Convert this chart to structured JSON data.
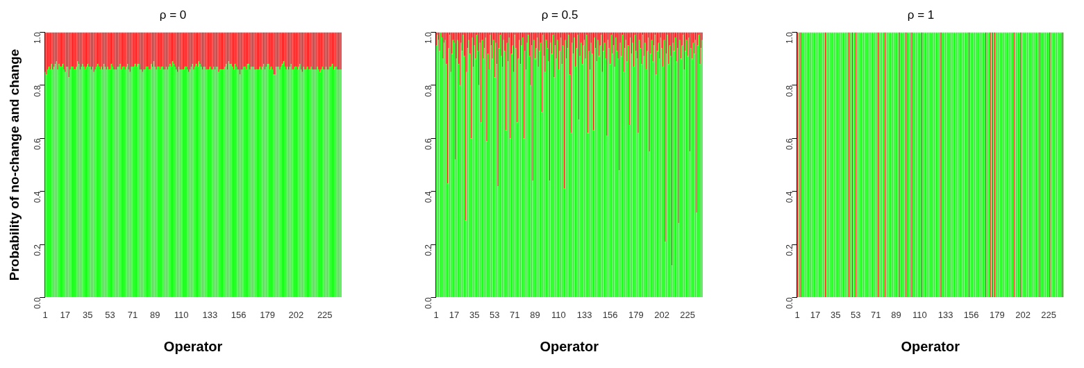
{
  "chart_data": [
    {
      "type": "bar",
      "title": "ρ = 0",
      "xlabel": "Operator",
      "ylabel": "Probability of no-change and change",
      "stacked": true,
      "categories": [
        "1",
        null,
        null,
        null,
        null,
        null,
        null,
        null,
        null,
        null,
        null,
        null,
        null,
        null,
        null,
        null,
        "17",
        null,
        null,
        null,
        null,
        null,
        null,
        null,
        null,
        null,
        null,
        null,
        null,
        null,
        null,
        null,
        null,
        null,
        "35",
        null,
        null,
        null,
        null,
        null,
        null,
        null,
        null,
        null,
        null,
        null,
        null,
        null,
        null,
        null,
        null,
        null,
        "53",
        null,
        null,
        null,
        null,
        null,
        null,
        null,
        null,
        null,
        null,
        null,
        null,
        null,
        null,
        null,
        null,
        null,
        "71",
        null,
        null,
        null,
        null,
        null,
        null,
        null,
        null,
        null,
        null,
        null,
        null,
        null,
        null,
        null,
        null,
        null,
        "89",
        null,
        null,
        null,
        null,
        null,
        null,
        null,
        null,
        null,
        null,
        null,
        null,
        null,
        null,
        null,
        null,
        null,
        null,
        null,
        null,
        "110",
        null,
        null,
        null,
        null,
        null,
        null,
        null,
        null,
        null,
        null,
        null,
        null,
        null,
        null,
        null,
        null,
        null,
        null,
        null,
        null,
        null,
        null,
        "133",
        null,
        null,
        null,
        null,
        null,
        null,
        null,
        null,
        null,
        null,
        null,
        null,
        null,
        null,
        null,
        null,
        null,
        null,
        null,
        null,
        null,
        null,
        "156",
        null,
        null,
        null,
        null,
        null,
        null,
        null,
        null,
        null,
        null,
        null,
        null,
        null,
        null,
        null,
        null,
        null,
        null,
        null,
        null,
        null,
        null,
        "179",
        null,
        null,
        null,
        null,
        null,
        null,
        null,
        null,
        null,
        null,
        null,
        null,
        null,
        null,
        null,
        null,
        null,
        null,
        null,
        null,
        null,
        null,
        "202",
        null,
        null,
        null,
        null,
        null,
        null,
        null,
        null,
        null,
        null,
        null,
        null,
        null,
        null,
        null,
        null,
        null,
        null,
        null,
        null,
        null,
        null,
        "225",
        null,
        null,
        null,
        null,
        null,
        null,
        null,
        null,
        null,
        null,
        null,
        null,
        null
      ],
      "ylim": [
        0,
        1
      ],
      "yticks": [
        {
          "value": 0,
          "label": "0.0"
        },
        {
          "value": 0.2,
          "label": "0.2"
        },
        {
          "value": 0.4,
          "label": "0.4"
        },
        {
          "value": 0.6,
          "label": "0.6"
        },
        {
          "value": 0.8,
          "label": "0.8"
        },
        {
          "value": 1,
          "label": "1.0"
        }
      ],
      "series": [
        {
          "color": "#00ff00",
          "values": [
            0.85,
            0.84,
            0.86,
            0.87,
            0.86,
            0.88,
            0.86,
            0.87,
            0.88,
            0.89,
            0.86,
            0.88,
            0.87,
            0.87,
            0.88,
            0.86,
            0.85,
            0.87,
            0.87,
            0.83,
            0.86,
            0.87,
            0.87,
            0.86,
            0.86,
            0.87,
            0.89,
            0.88,
            0.86,
            0.87,
            0.88,
            0.87,
            0.86,
            0.87,
            0.88,
            0.87,
            0.87,
            0.86,
            0.87,
            0.85,
            0.86,
            0.87,
            0.88,
            0.87,
            0.86,
            0.87,
            0.86,
            0.88,
            0.87,
            0.86,
            0.87,
            0.86,
            0.86,
            0.88,
            0.87,
            0.86,
            0.86,
            0.86,
            0.87,
            0.87,
            0.88,
            0.86,
            0.87,
            0.87,
            0.86,
            0.87,
            0.88,
            0.86,
            0.85,
            0.87,
            0.87,
            0.87,
            0.88,
            0.87,
            0.88,
            0.88,
            0.86,
            0.86,
            0.85,
            0.86,
            0.86,
            0.87,
            0.87,
            0.86,
            0.86,
            0.88,
            0.87,
            0.89,
            0.87,
            0.86,
            0.87,
            0.87,
            0.86,
            0.87,
            0.87,
            0.86,
            0.86,
            0.87,
            0.86,
            0.87,
            0.88,
            0.87,
            0.89,
            0.88,
            0.87,
            0.86,
            0.85,
            0.87,
            0.86,
            0.86,
            0.86,
            0.86,
            0.87,
            0.87,
            0.86,
            0.85,
            0.86,
            0.87,
            0.88,
            0.86,
            0.87,
            0.88,
            0.87,
            0.89,
            0.88,
            0.87,
            0.86,
            0.87,
            0.87,
            0.86,
            0.86,
            0.86,
            0.87,
            0.86,
            0.86,
            0.87,
            0.86,
            0.87,
            0.87,
            0.85,
            0.86,
            0.86,
            0.86,
            0.86,
            0.87,
            0.88,
            0.86,
            0.89,
            0.88,
            0.88,
            0.87,
            0.86,
            0.88,
            0.87,
            0.86,
            0.86,
            0.84,
            0.86,
            0.86,
            0.87,
            0.87,
            0.86,
            0.88,
            0.88,
            0.86,
            0.87,
            0.87,
            0.87,
            0.86,
            0.86,
            0.86,
            0.86,
            0.87,
            0.86,
            0.87,
            0.88,
            0.86,
            0.87,
            0.88,
            0.88,
            0.86,
            0.87,
            0.86,
            0.84,
            0.84,
            0.87,
            0.87,
            0.87,
            0.86,
            0.87,
            0.88,
            0.89,
            0.87,
            0.86,
            0.87,
            0.86,
            0.87,
            0.88,
            0.86,
            0.86,
            0.87,
            0.87,
            0.86,
            0.87,
            0.88,
            0.86,
            0.85,
            0.87,
            0.86,
            0.86,
            0.87,
            0.86,
            0.86,
            0.87,
            0.86,
            0.86,
            0.86,
            0.86,
            0.87,
            0.86,
            0.85,
            0.86,
            0.87,
            0.86,
            0.86,
            0.87,
            0.86,
            0.86,
            0.87,
            0.87,
            0.88,
            0.86,
            0.87,
            0.87,
            0.86,
            0.86,
            0.86,
            0.86
          ]
        },
        {
          "color": "#ff0000",
          "values": [
            0.15,
            0.16,
            0.14,
            0.13,
            0.14,
            0.12,
            0.14,
            0.13,
            0.12,
            0.11,
            0.14,
            0.12,
            0.13,
            0.13,
            0.12,
            0.14,
            0.15,
            0.13,
            0.13,
            0.17,
            0.14,
            0.13,
            0.13,
            0.14,
            0.14,
            0.13,
            0.11,
            0.12,
            0.14,
            0.13,
            0.12,
            0.13,
            0.14,
            0.13,
            0.12,
            0.13,
            0.13,
            0.14,
            0.13,
            0.15,
            0.14,
            0.13,
            0.12,
            0.13,
            0.14,
            0.13,
            0.14,
            0.12,
            0.13,
            0.14,
            0.13,
            0.14,
            0.14,
            0.12,
            0.13,
            0.14,
            0.14,
            0.14,
            0.13,
            0.13,
            0.12,
            0.14,
            0.13,
            0.13,
            0.14,
            0.13,
            0.12,
            0.14,
            0.15,
            0.13,
            0.13,
            0.13,
            0.12,
            0.13,
            0.12,
            0.12,
            0.14,
            0.14,
            0.15,
            0.14,
            0.14,
            0.13,
            0.13,
            0.14,
            0.14,
            0.12,
            0.13,
            0.11,
            0.13,
            0.14,
            0.13,
            0.13,
            0.14,
            0.13,
            0.13,
            0.14,
            0.14,
            0.13,
            0.14,
            0.13,
            0.12,
            0.13,
            0.11,
            0.12,
            0.13,
            0.14,
            0.15,
            0.13,
            0.14,
            0.14,
            0.14,
            0.14,
            0.13,
            0.13,
            0.14,
            0.15,
            0.14,
            0.13,
            0.12,
            0.14,
            0.13,
            0.12,
            0.13,
            0.11,
            0.12,
            0.13,
            0.14,
            0.13,
            0.13,
            0.14,
            0.14,
            0.14,
            0.13,
            0.14,
            0.14,
            0.13,
            0.14,
            0.13,
            0.13,
            0.15,
            0.14,
            0.14,
            0.14,
            0.14,
            0.13,
            0.12,
            0.14,
            0.11,
            0.12,
            0.12,
            0.13,
            0.14,
            0.12,
            0.13,
            0.14,
            0.14,
            0.16,
            0.14,
            0.14,
            0.13,
            0.13,
            0.14,
            0.12,
            0.12,
            0.14,
            0.13,
            0.13,
            0.13,
            0.14,
            0.14,
            0.14,
            0.14,
            0.13,
            0.14,
            0.13,
            0.12,
            0.14,
            0.13,
            0.12,
            0.12,
            0.14,
            0.13,
            0.14,
            0.16,
            0.16,
            0.13,
            0.13,
            0.13,
            0.14,
            0.13,
            0.12,
            0.11,
            0.13,
            0.14,
            0.13,
            0.14,
            0.13,
            0.12,
            0.14,
            0.14,
            0.13,
            0.13,
            0.14,
            0.13,
            0.12,
            0.14,
            0.15,
            0.13,
            0.14,
            0.14,
            0.13,
            0.14,
            0.14,
            0.13,
            0.14,
            0.14,
            0.14,
            0.14,
            0.13,
            0.14,
            0.15,
            0.14,
            0.13,
            0.14,
            0.14,
            0.13,
            0.14,
            0.14,
            0.13,
            0.13,
            0.12,
            0.14,
            0.13,
            0.13,
            0.14,
            0.14,
            0.14,
            0.14
          ]
        }
      ]
    },
    {
      "type": "bar",
      "title": "ρ = 0.5",
      "xlabel": "Operator",
      "stacked": true,
      "categories": [
        "1",
        null,
        null,
        null,
        null,
        null,
        null,
        null,
        null,
        null,
        null,
        null,
        null,
        null,
        null,
        null,
        "17",
        null,
        null,
        null,
        null,
        null,
        null,
        null,
        null,
        null,
        null,
        null,
        null,
        null,
        null,
        null,
        null,
        null,
        "35",
        null,
        null,
        null,
        null,
        null,
        null,
        null,
        null,
        null,
        null,
        null,
        null,
        null,
        null,
        null,
        null,
        null,
        "53",
        null,
        null,
        null,
        null,
        null,
        null,
        null,
        null,
        null,
        null,
        null,
        null,
        null,
        null,
        null,
        null,
        null,
        "71",
        null,
        null,
        null,
        null,
        null,
        null,
        null,
        null,
        null,
        null,
        null,
        null,
        null,
        null,
        null,
        null,
        null,
        "89",
        null,
        null,
        null,
        null,
        null,
        null,
        null,
        null,
        null,
        null,
        null,
        null,
        null,
        null,
        null,
        null,
        null,
        null,
        null,
        null,
        "110",
        null,
        null,
        null,
        null,
        null,
        null,
        null,
        null,
        null,
        null,
        null,
        null,
        null,
        null,
        null,
        null,
        null,
        null,
        null,
        null,
        null,
        null,
        "133",
        null,
        null,
        null,
        null,
        null,
        null,
        null,
        null,
        null,
        null,
        null,
        null,
        null,
        null,
        null,
        null,
        null,
        null,
        null,
        null,
        null,
        null,
        "156",
        null,
        null,
        null,
        null,
        null,
        null,
        null,
        null,
        null,
        null,
        null,
        null,
        null,
        null,
        null,
        null,
        null,
        null,
        null,
        null,
        null,
        null,
        "179",
        null,
        null,
        null,
        null,
        null,
        null,
        null,
        null,
        null,
        null,
        null,
        null,
        null,
        null,
        null,
        null,
        null,
        null,
        null,
        null,
        null,
        null,
        "202",
        null,
        null,
        null,
        null,
        null,
        null,
        null,
        null,
        null,
        null,
        null,
        null,
        null,
        null,
        null,
        null,
        null,
        null,
        null,
        null,
        null,
        null,
        "225",
        null,
        null,
        null,
        null,
        null,
        null,
        null,
        null,
        null,
        null,
        null,
        null,
        null
      ],
      "ylim": [
        0,
        1
      ],
      "yticks": [
        {
          "value": 0,
          "label": "0.0"
        },
        {
          "value": 0.2,
          "label": "0.2"
        },
        {
          "value": 0.4,
          "label": "0.4"
        },
        {
          "value": 0.6,
          "label": "0.6"
        },
        {
          "value": 0.8,
          "label": "0.8"
        },
        {
          "value": 1,
          "label": "1.0"
        }
      ],
      "series": [
        {
          "color": "#00ff00",
          "values": [
            0.95,
            0.99,
            0.97,
            0.93,
            1,
            0.98,
            0.9,
            0.96,
            0.97,
            0.88,
            0.43,
            0.94,
            0.99,
            0.85,
            0.92,
            0.97,
            0.96,
            0.52,
            0.9,
            0.97,
            0.88,
            0.8,
            0.96,
            0.93,
            0.99,
            0.91,
            0.29,
            0.85,
            0.94,
            0.97,
            0.92,
            0.6,
            0.98,
            0.87,
            0.95,
            0.9,
            0.99,
            0.93,
            0.8,
            0.96,
            0.66,
            0.97,
            0.9,
            0.94,
            0.98,
            0.59,
            0.92,
            0.86,
            0.99,
            0.95,
            0.9,
            0.97,
            0.83,
            0.96,
            0.88,
            0.42,
            0.94,
            0.99,
            0.91,
            0.87,
            0.97,
            0.93,
            0.63,
            0.96,
            0.89,
            0.98,
            0.6,
            0.92,
            0.95,
            0.85,
            0.99,
            0.94,
            0.66,
            0.9,
            0.97,
            0.88,
            0.95,
            0.98,
            0.6,
            0.93,
            0.86,
            0.96,
            0.99,
            0.91,
            0.8,
            0.95,
            0.44,
            0.97,
            0.9,
            0.94,
            0.98,
            0.87,
            0.93,
            0.96,
            0.7,
            0.99,
            0.91,
            0.85,
            0.97,
            0.94,
            0.89,
            0.44,
            0.96,
            0.92,
            0.99,
            0.83,
            0.95,
            0.9,
            0.97,
            0.86,
            0.93,
            0.98,
            0.88,
            0.95,
            0.41,
            0.97,
            0.9,
            0.94,
            0.99,
            0.84,
            0.62,
            0.96,
            0.92,
            0.98,
            0.87,
            0.94,
            0.99,
            0.67,
            0.91,
            0.96,
            0.88,
            0.95,
            0.97,
            0.9,
            0.99,
            0.62,
            0.93,
            0.86,
            0.96,
            0.92,
            0.63,
            0.98,
            0.94,
            0.89,
            0.97,
            0.91,
            0.95,
            0.99,
            0.85,
            0.93,
            0.96,
            0.9,
            0.61,
            0.97,
            0.94,
            0.88,
            0.99,
            0.92,
            0.95,
            0.87,
            0.98,
            0.93,
            0.9,
            0.48,
            0.96,
            0.91,
            0.99,
            0.85,
            0.94,
            0.97,
            0.89,
            0.95,
            0.65,
            0.98,
            0.92,
            0.96,
            0.87,
            0.99,
            0.93,
            0.9,
            0.62,
            0.97,
            0.94,
            0.88,
            0.99,
            0.91,
            0.96,
            0.86,
            0.93,
            0.98,
            0.55,
            0.92,
            0.97,
            0.89,
            0.95,
            0.99,
            0.84,
            0.93,
            0.96,
            0.9,
            0.98,
            0.94,
            0.87,
            0.97,
            0.21,
            0.92,
            0.99,
            0.88,
            0.95,
            0.91,
            0.12,
            0.96,
            0.93,
            0.98,
            0.89,
            0.94,
            0.28,
            0.97,
            0.9,
            0.95,
            0.99,
            0.86,
            0.93,
            0.97,
            0.91,
            0.98,
            0.55,
            0.94,
            0.9,
            0.96,
            0.92,
            0.97,
            0.32,
            0.95,
            0.99,
            0.88,
            0.94,
            0.97
          ]
        },
        {
          "color": "#ff0000",
          "values": [
            0.05,
            0.01,
            0.03,
            0.07,
            0,
            0.02,
            0.1,
            0.04,
            0.03,
            0.12,
            0.57,
            0.06,
            0.01,
            0.15,
            0.08,
            0.03,
            0.04,
            0.48,
            0.1,
            0.03,
            0.12,
            0.2,
            0.04,
            0.07,
            0.01,
            0.09,
            0.71,
            0.15,
            0.06,
            0.03,
            0.08,
            0.4,
            0.02,
            0.13,
            0.05,
            0.1,
            0.01,
            0.07,
            0.2,
            0.04,
            0.34,
            0.03,
            0.1,
            0.06,
            0.02,
            0.41,
            0.08,
            0.14,
            0.01,
            0.05,
            0.1,
            0.03,
            0.17,
            0.04,
            0.12,
            0.58,
            0.06,
            0.01,
            0.09,
            0.13,
            0.03,
            0.07,
            0.37,
            0.04,
            0.11,
            0.02,
            0.4,
            0.08,
            0.05,
            0.15,
            0.01,
            0.06,
            0.34,
            0.1,
            0.03,
            0.12,
            0.05,
            0.02,
            0.4,
            0.07,
            0.14,
            0.04,
            0.01,
            0.09,
            0.2,
            0.05,
            0.56,
            0.03,
            0.1,
            0.06,
            0.02,
            0.13,
            0.07,
            0.04,
            0.3,
            0.01,
            0.09,
            0.15,
            0.03,
            0.06,
            0.11,
            0.56,
            0.04,
            0.08,
            0.01,
            0.17,
            0.05,
            0.1,
            0.03,
            0.14,
            0.07,
            0.02,
            0.12,
            0.05,
            0.59,
            0.03,
            0.1,
            0.06,
            0.01,
            0.16,
            0.38,
            0.04,
            0.08,
            0.02,
            0.13,
            0.06,
            0.01,
            0.33,
            0.09,
            0.04,
            0.12,
            0.05,
            0.03,
            0.1,
            0.01,
            0.38,
            0.07,
            0.14,
            0.04,
            0.08,
            0.37,
            0.02,
            0.06,
            0.11,
            0.03,
            0.09,
            0.05,
            0.01,
            0.15,
            0.07,
            0.04,
            0.1,
            0.39,
            0.03,
            0.06,
            0.12,
            0.01,
            0.08,
            0.05,
            0.13,
            0.02,
            0.07,
            0.1,
            0.52,
            0.04,
            0.09,
            0.01,
            0.15,
            0.06,
            0.03,
            0.11,
            0.05,
            0.35,
            0.02,
            0.08,
            0.04,
            0.13,
            0.01,
            0.07,
            0.1,
            0.38,
            0.03,
            0.06,
            0.12,
            0.01,
            0.09,
            0.04,
            0.14,
            0.07,
            0.02,
            0.45,
            0.08,
            0.03,
            0.11,
            0.05,
            0.01,
            0.16,
            0.07,
            0.04,
            0.1,
            0.02,
            0.06,
            0.13,
            0.03,
            0.79,
            0.08,
            0.01,
            0.12,
            0.05,
            0.09,
            0.88,
            0.04,
            0.07,
            0.02,
            0.11,
            0.06,
            0.72,
            0.03,
            0.1,
            0.05,
            0.01,
            0.14,
            0.07,
            0.03,
            0.09,
            0.02,
            0.45,
            0.06,
            0.1,
            0.04,
            0.08,
            0.03,
            0.68,
            0.05,
            0.01,
            0.12,
            0.06,
            0.03
          ]
        }
      ]
    },
    {
      "type": "bar",
      "title": "ρ = 1",
      "xlabel": "Operator",
      "stacked": true,
      "categories": [
        "1",
        null,
        null,
        null,
        null,
        null,
        null,
        null,
        null,
        null,
        null,
        null,
        null,
        null,
        null,
        null,
        "17",
        null,
        null,
        null,
        null,
        null,
        null,
        null,
        null,
        null,
        null,
        null,
        null,
        null,
        null,
        null,
        null,
        null,
        "35",
        null,
        null,
        null,
        null,
        null,
        null,
        null,
        null,
        null,
        null,
        null,
        null,
        null,
        null,
        null,
        null,
        null,
        "53",
        null,
        null,
        null,
        null,
        null,
        null,
        null,
        null,
        null,
        null,
        null,
        null,
        null,
        null,
        null,
        null,
        null,
        "71",
        null,
        null,
        null,
        null,
        null,
        null,
        null,
        null,
        null,
        null,
        null,
        null,
        null,
        null,
        null,
        null,
        null,
        "89",
        null,
        null,
        null,
        null,
        null,
        null,
        null,
        null,
        null,
        null,
        null,
        null,
        null,
        null,
        null,
        null,
        null,
        null,
        null,
        null,
        "110",
        null,
        null,
        null,
        null,
        null,
        null,
        null,
        null,
        null,
        null,
        null,
        null,
        null,
        null,
        null,
        null,
        null,
        null,
        null,
        null,
        null,
        null,
        "133",
        null,
        null,
        null,
        null,
        null,
        null,
        null,
        null,
        null,
        null,
        null,
        null,
        null,
        null,
        null,
        null,
        null,
        null,
        null,
        null,
        null,
        null,
        "156",
        null,
        null,
        null,
        null,
        null,
        null,
        null,
        null,
        null,
        null,
        null,
        null,
        null,
        null,
        null,
        null,
        null,
        null,
        null,
        null,
        null,
        null,
        "179",
        null,
        null,
        null,
        null,
        null,
        null,
        null,
        null,
        null,
        null,
        null,
        null,
        null,
        null,
        null,
        null,
        null,
        null,
        null,
        null,
        null,
        null,
        "202",
        null,
        null,
        null,
        null,
        null,
        null,
        null,
        null,
        null,
        null,
        null,
        null,
        null,
        null,
        null,
        null,
        null,
        null,
        null,
        null,
        null,
        null,
        "225",
        null,
        null,
        null,
        null,
        null,
        null,
        null,
        null,
        null,
        null,
        null,
        null,
        null
      ],
      "ylim": [
        0,
        1
      ],
      "yticks": [
        {
          "value": 0,
          "label": "0.0"
        },
        {
          "value": 0.2,
          "label": "0.2"
        },
        {
          "value": 0.4,
          "label": "0.4"
        },
        {
          "value": 0.6,
          "label": "0.6"
        },
        {
          "value": 0.8,
          "label": "0.8"
        },
        {
          "value": 1,
          "label": "1.0"
        }
      ],
      "series": [
        {
          "color": "#00ff00",
          "values": [
            0,
            1,
            1,
            0,
            1,
            1,
            1,
            1,
            1,
            1,
            1,
            1,
            1,
            1,
            1,
            1,
            1,
            1,
            1,
            1,
            1,
            1,
            1,
            1,
            1,
            0,
            1,
            1,
            1,
            1,
            1,
            1,
            1,
            1,
            1,
            1,
            1,
            1,
            1,
            1,
            1,
            1,
            1,
            1,
            1,
            1,
            0,
            1,
            1,
            0,
            1,
            1,
            0,
            1,
            1,
            1,
            1,
            1,
            1,
            1,
            1,
            1,
            1,
            1,
            1,
            1,
            1,
            1,
            1,
            1,
            1,
            1,
            0,
            1,
            1,
            1,
            1,
            1,
            0,
            1,
            1,
            1,
            1,
            1,
            1,
            1,
            1,
            1,
            1,
            1,
            1,
            0,
            1,
            1,
            1,
            1,
            1,
            0,
            1,
            1,
            1,
            1,
            0,
            1,
            1,
            1,
            1,
            1,
            1,
            1,
            1,
            0,
            1,
            1,
            1,
            1,
            1,
            1,
            1,
            1,
            1,
            1,
            1,
            1,
            1,
            1,
            1,
            1,
            0,
            1,
            1,
            1,
            1,
            1,
            1,
            1,
            1,
            1,
            1,
            1,
            1,
            1,
            1,
            1,
            1,
            1,
            1,
            1,
            1,
            1,
            1,
            1,
            1,
            0,
            1,
            1,
            1,
            1,
            1,
            1,
            1,
            1,
            1,
            1,
            1,
            1,
            1,
            1,
            0,
            1,
            1,
            1,
            0,
            1,
            0,
            1,
            0,
            1,
            1,
            1,
            1,
            1,
            1,
            1,
            1,
            1,
            1,
            1,
            1,
            1,
            1,
            1,
            1,
            0,
            1,
            1,
            1,
            1,
            1,
            0,
            1,
            1,
            1,
            1,
            1,
            1,
            1,
            1,
            1,
            1,
            1,
            1,
            1,
            1,
            1,
            1,
            0,
            1,
            1,
            1,
            1,
            1,
            1,
            1,
            1,
            0,
            1,
            1,
            1,
            1,
            1,
            1,
            1,
            1,
            1,
            1,
            0,
            1
          ]
        },
        {
          "color": "#ff0000",
          "values": [
            1,
            0,
            0,
            1,
            0,
            0,
            0,
            0,
            0,
            0,
            0,
            0,
            0,
            0,
            0,
            0,
            0,
            0,
            0,
            0,
            0,
            0,
            0,
            0,
            0,
            1,
            0,
            0,
            0,
            0,
            0,
            0,
            0,
            0,
            0,
            0,
            0,
            0,
            0,
            0,
            0,
            0,
            0,
            0,
            0,
            0,
            1,
            0,
            0,
            1,
            0,
            0,
            1,
            0,
            0,
            0,
            0,
            0,
            0,
            0,
            0,
            0,
            0,
            0,
            0,
            0,
            0,
            0,
            0,
            0,
            0,
            0,
            1,
            0,
            0,
            0,
            0,
            0,
            1,
            0,
            0,
            0,
            0,
            0,
            0,
            0,
            0,
            0,
            0,
            0,
            0,
            1,
            0,
            0,
            0,
            0,
            0,
            1,
            0,
            0,
            0,
            0,
            1,
            0,
            0,
            0,
            0,
            0,
            0,
            0,
            0,
            1,
            0,
            0,
            0,
            0,
            0,
            0,
            0,
            0,
            0,
            0,
            0,
            0,
            0,
            0,
            0,
            0,
            1,
            0,
            0,
            0,
            0,
            0,
            0,
            0,
            0,
            0,
            0,
            0,
            0,
            0,
            0,
            0,
            0,
            0,
            0,
            0,
            0,
            0,
            0,
            0,
            0,
            1,
            0,
            0,
            0,
            0,
            0,
            0,
            0,
            0,
            0,
            0,
            0,
            0,
            0,
            0,
            1,
            0,
            0,
            0,
            1,
            0,
            1,
            0,
            1,
            0,
            0,
            0,
            0,
            0,
            0,
            0,
            0,
            0,
            0,
            0,
            0,
            0,
            0,
            0,
            0,
            1,
            0,
            0,
            0,
            0,
            0,
            1,
            0,
            0,
            0,
            0,
            0,
            0,
            0,
            0,
            0,
            0,
            0,
            0,
            0,
            0,
            0,
            0,
            1,
            0,
            0,
            0,
            0,
            0,
            0,
            0,
            0,
            1,
            0,
            0,
            0,
            0,
            0,
            0,
            0,
            0,
            0,
            0,
            1,
            0
          ]
        }
      ]
    }
  ]
}
